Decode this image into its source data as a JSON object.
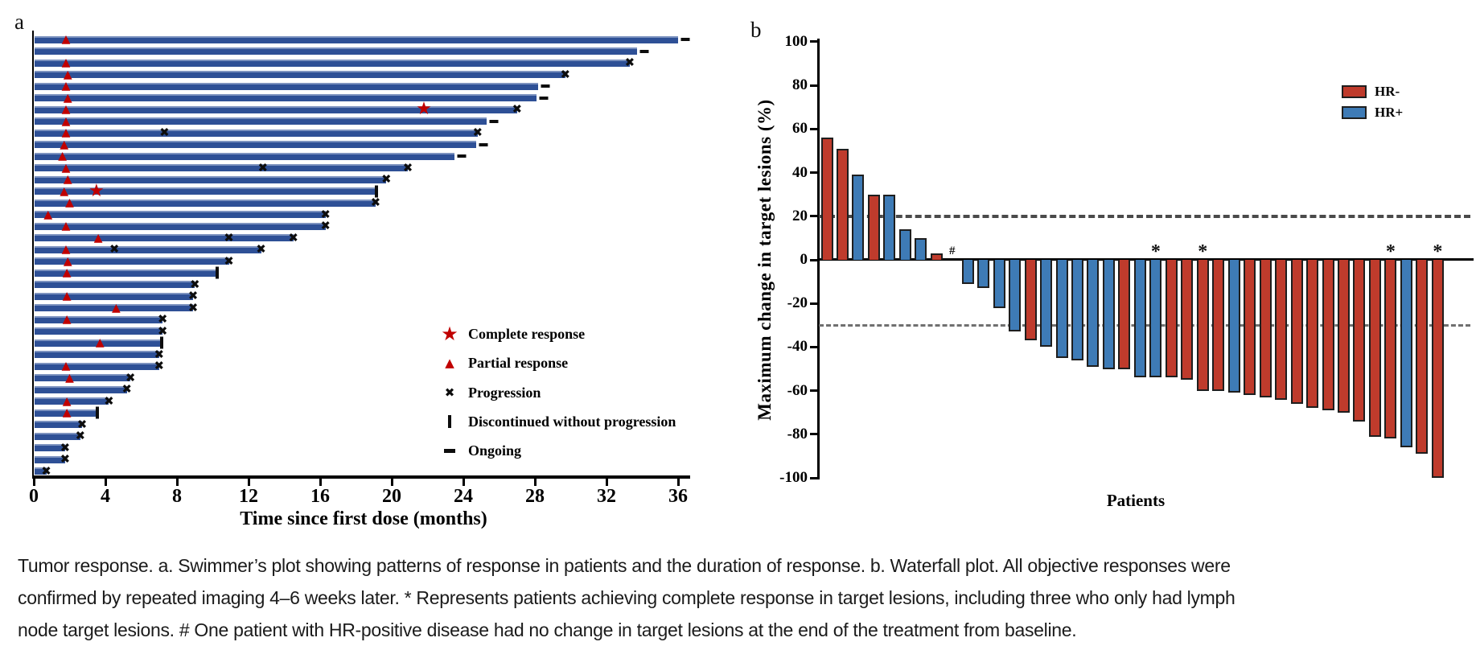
{
  "figure": {
    "panel_a_label": "a",
    "panel_b_label": "b"
  },
  "caption": {
    "line1": "Tumor response. a. Swimmer’s plot showing patterns of response in patients and the duration of response. b. Waterfall plot. All objective responses were",
    "line2": "confirmed by repeated imaging 4–6 weeks later. * Represents patients achieving complete response in target lesions, including three who only had lymph",
    "line3": "node target lesions. # One patient with HR-positive disease had no change in target lesions at the end of the treatment from baseline."
  },
  "colors": {
    "swimmer_bar": "#2E5096",
    "response_marker_red": "#C00000",
    "hr_negative": "#BF3B2C",
    "hr_positive": "#3E7BB6",
    "bar_outline": "#1e1e1e",
    "dashed_reference": "#4a4a4a"
  },
  "chart_data": [
    {
      "type": "swimmer",
      "xlabel": "Time since first dose (months)",
      "xticks": [
        0,
        4,
        8,
        12,
        16,
        20,
        24,
        28,
        32,
        36
      ],
      "xlim": [
        0,
        36.8
      ],
      "legend": [
        {
          "marker": "star",
          "label": "Complete response"
        },
        {
          "marker": "triangle",
          "label": "Partial response"
        },
        {
          "marker": "x",
          "label": "Progression"
        },
        {
          "marker": "vbar",
          "label": "Discontinued without progression"
        },
        {
          "marker": "dash",
          "label": "Ongoing"
        }
      ],
      "patients": [
        {
          "duration": 36.0,
          "end": "ongoing",
          "partial_response_at": 1.8
        },
        {
          "duration": 33.7,
          "end": "ongoing"
        },
        {
          "duration": 33.3,
          "end": "progression",
          "partial_response_at": 1.8
        },
        {
          "duration": 29.7,
          "end": "progression",
          "partial_response_at": 1.9
        },
        {
          "duration": 28.2,
          "end": "ongoing",
          "partial_response_at": 1.8
        },
        {
          "duration": 28.1,
          "end": "ongoing",
          "partial_response_at": 1.9
        },
        {
          "duration": 27.0,
          "end": "progression",
          "partial_response_at": 1.8,
          "complete_response_at": 21.8
        },
        {
          "duration": 25.3,
          "end": "ongoing",
          "partial_response_at": 1.8
        },
        {
          "duration": 24.8,
          "end": "progression",
          "partial_response_at": 1.8,
          "progression_mid_at": 7.3
        },
        {
          "duration": 24.7,
          "end": "ongoing",
          "partial_response_at": 1.7
        },
        {
          "duration": 23.5,
          "end": "ongoing",
          "partial_response_at": 1.6
        },
        {
          "duration": 20.9,
          "end": "progression",
          "partial_response_at": 1.8,
          "progression_mid_at": 12.8
        },
        {
          "duration": 19.7,
          "end": "progression",
          "partial_response_at": 1.9
        },
        {
          "duration": 19.1,
          "end": "discontinued",
          "partial_response_at": 1.7,
          "complete_response_at": 3.5
        },
        {
          "duration": 19.1,
          "end": "progression",
          "partial_response_at": 2.0
        },
        {
          "duration": 16.3,
          "end": "progression",
          "partial_response_at": 0.8
        },
        {
          "duration": 16.3,
          "end": "progression",
          "partial_response_at": 1.8
        },
        {
          "duration": 14.5,
          "end": "progression",
          "partial_response_at": 3.6,
          "progression_mid_at": 10.9
        },
        {
          "duration": 12.7,
          "end": "progression",
          "partial_response_at": 1.8,
          "progression_mid_at": 4.5
        },
        {
          "duration": 10.9,
          "end": "progression",
          "partial_response_at": 1.9
        },
        {
          "duration": 10.2,
          "end": "discontinued",
          "partial_response_at": 1.85
        },
        {
          "duration": 9.0,
          "end": "progression"
        },
        {
          "duration": 8.9,
          "end": "progression",
          "partial_response_at": 1.85
        },
        {
          "duration": 8.9,
          "end": "progression",
          "partial_response_at": 4.6
        },
        {
          "duration": 7.2,
          "end": "progression",
          "partial_response_at": 1.85
        },
        {
          "duration": 7.2,
          "end": "progression"
        },
        {
          "duration": 7.1,
          "end": "discontinued",
          "partial_response_at": 3.7
        },
        {
          "duration": 7.0,
          "end": "progression"
        },
        {
          "duration": 7.0,
          "end": "progression",
          "partial_response_at": 1.8
        },
        {
          "duration": 5.4,
          "end": "progression",
          "partial_response_at": 2.0
        },
        {
          "duration": 5.2,
          "end": "progression"
        },
        {
          "duration": 4.2,
          "end": "progression",
          "partial_response_at": 1.85
        },
        {
          "duration": 3.5,
          "end": "discontinued",
          "partial_response_at": 1.85
        },
        {
          "duration": 2.7,
          "end": "progression"
        },
        {
          "duration": 2.6,
          "end": "progression"
        },
        {
          "duration": 1.75,
          "end": "progression"
        },
        {
          "duration": 1.75,
          "end": "progression"
        },
        {
          "duration": 0.7,
          "end": "progression"
        }
      ]
    },
    {
      "type": "bar",
      "xlabel": "Patients",
      "ylabel": "Maximum change in target lesions (%)",
      "ylim": [
        -100,
        100
      ],
      "yticks": [
        100,
        80,
        60,
        40,
        20,
        0,
        -20,
        -40,
        -60,
        -80,
        -100
      ],
      "reference_lines": [
        20,
        -30
      ],
      "legend": [
        {
          "label": "HR-",
          "color": "#BF3B2C"
        },
        {
          "label": "HR+",
          "color": "#3E7BB6"
        }
      ],
      "patients": [
        {
          "value": 56,
          "group": "HR-"
        },
        {
          "value": 51,
          "group": "HR-"
        },
        {
          "value": 39,
          "group": "HR+"
        },
        {
          "value": 30,
          "group": "HR-"
        },
        {
          "value": 30,
          "group": "HR+"
        },
        {
          "value": 14,
          "group": "HR+"
        },
        {
          "value": 10,
          "group": "HR+"
        },
        {
          "value": 3,
          "group": "HR-"
        },
        {
          "value": 0,
          "group": "HR+",
          "note": "#"
        },
        {
          "value": -11,
          "group": "HR+"
        },
        {
          "value": -13,
          "group": "HR+"
        },
        {
          "value": -22,
          "group": "HR+"
        },
        {
          "value": -33,
          "group": "HR+"
        },
        {
          "value": -37,
          "group": "HR-"
        },
        {
          "value": -40,
          "group": "HR+"
        },
        {
          "value": -45,
          "group": "HR+"
        },
        {
          "value": -46,
          "group": "HR+"
        },
        {
          "value": -49,
          "group": "HR+"
        },
        {
          "value": -50,
          "group": "HR+"
        },
        {
          "value": -50,
          "group": "HR-"
        },
        {
          "value": -54,
          "group": "HR+"
        },
        {
          "value": -54,
          "group": "HR+",
          "note": "*"
        },
        {
          "value": -54,
          "group": "HR-"
        },
        {
          "value": -55,
          "group": "HR-"
        },
        {
          "value": -60,
          "group": "HR-",
          "note": "*"
        },
        {
          "value": -60,
          "group": "HR-"
        },
        {
          "value": -61,
          "group": "HR+"
        },
        {
          "value": -62,
          "group": "HR-"
        },
        {
          "value": -63,
          "group": "HR-"
        },
        {
          "value": -64,
          "group": "HR-"
        },
        {
          "value": -66,
          "group": "HR-"
        },
        {
          "value": -68,
          "group": "HR-"
        },
        {
          "value": -69,
          "group": "HR-"
        },
        {
          "value": -70,
          "group": "HR-"
        },
        {
          "value": -74,
          "group": "HR-"
        },
        {
          "value": -81,
          "group": "HR-"
        },
        {
          "value": -82,
          "group": "HR-",
          "note": "*"
        },
        {
          "value": -86,
          "group": "HR+"
        },
        {
          "value": -89,
          "group": "HR-"
        },
        {
          "value": -100,
          "group": "HR-",
          "note": "*"
        }
      ]
    }
  ]
}
